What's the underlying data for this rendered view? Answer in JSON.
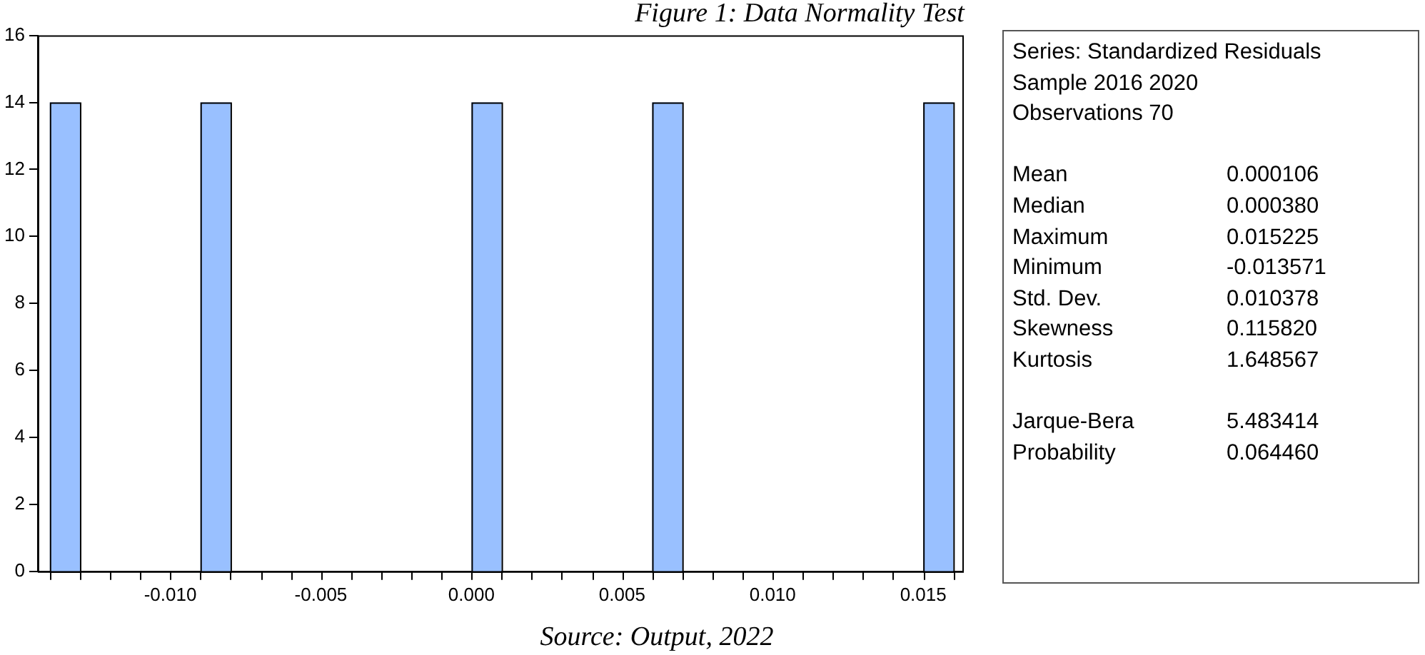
{
  "chart_data": [
    {
      "type": "histogram",
      "title": "Figure 1: Data Normality Test",
      "color": "#99c0ff",
      "bins": [
        -0.014,
        -0.013,
        -0.012,
        -0.011,
        -0.01,
        -0.009,
        -0.008,
        -0.007,
        -0.006,
        -0.005,
        -0.004,
        -0.003,
        -0.002,
        -0.001,
        0,
        0.001,
        0.002,
        0.003,
        0.004,
        0.005,
        0.006,
        0.007,
        0.008,
        0.009,
        0.01,
        0.011,
        0.012,
        0.013,
        0.014,
        0.015,
        0.016
      ],
      "values": [
        14,
        0,
        0,
        0,
        0,
        14,
        0,
        0,
        0,
        0,
        0,
        0,
        0,
        0,
        14,
        0,
        0,
        0,
        0,
        0,
        14,
        0,
        0,
        0,
        0,
        0,
        0,
        0,
        0,
        14
      ],
      "xlim": [
        -0.0144,
        0.0163
      ],
      "xticks": [
        {
          "value": -0.014,
          "label": null
        },
        {
          "value": -0.013,
          "label": null
        },
        {
          "value": -0.012,
          "label": null
        },
        {
          "value": -0.011,
          "label": null
        },
        {
          "value": -0.01,
          "label": "-0.010"
        },
        {
          "value": -0.009,
          "label": null
        },
        {
          "value": -0.008,
          "label": null
        },
        {
          "value": -0.007,
          "label": null
        },
        {
          "value": -0.006,
          "label": null
        },
        {
          "value": -0.005,
          "label": "-0.005"
        },
        {
          "value": -0.004,
          "label": null
        },
        {
          "value": -0.003,
          "label": null
        },
        {
          "value": -0.002,
          "label": null
        },
        {
          "value": -0.001,
          "label": null
        },
        {
          "value": 0,
          "label": "0.000"
        },
        {
          "value": 0.001,
          "label": null
        },
        {
          "value": 0.002,
          "label": null
        },
        {
          "value": 0.003,
          "label": null
        },
        {
          "value": 0.004,
          "label": null
        },
        {
          "value": 0.005,
          "label": "0.005"
        },
        {
          "value": 0.006,
          "label": null
        },
        {
          "value": 0.007,
          "label": null
        },
        {
          "value": 0.008,
          "label": null
        },
        {
          "value": 0.009,
          "label": null
        },
        {
          "value": 0.01,
          "label": "0.010"
        },
        {
          "value": 0.011,
          "label": null
        },
        {
          "value": 0.012,
          "label": null
        },
        {
          "value": 0.013,
          "label": null
        },
        {
          "value": 0.014,
          "label": null
        },
        {
          "value": 0.015,
          "label": "0.015"
        },
        {
          "value": 0.016,
          "label": null
        }
      ],
      "ylim": [
        0,
        16
      ],
      "yticks": [
        0,
        2,
        4,
        6,
        8,
        10,
        12,
        14,
        16
      ],
      "annotations": [
        "Source: Output, 2022"
      ]
    },
    {
      "type": "other",
      "annotations": [
        "Series: Standardized Residuals",
        "Sample 2016 2020",
        "Observations 70"
      ],
      "categories": [
        "Mean",
        "Median",
        "Maximum",
        "Minimum",
        "Std. Dev.",
        "Skewness",
        "Kurtosis",
        "Jarque-Bera",
        "Probability"
      ],
      "value_labels": [
        "0.000106",
        "0.000380",
        "0.015225",
        "-0.013571",
        "0.010378",
        "0.115820",
        "1.648567",
        "5.483414",
        "0.064460"
      ]
    }
  ]
}
